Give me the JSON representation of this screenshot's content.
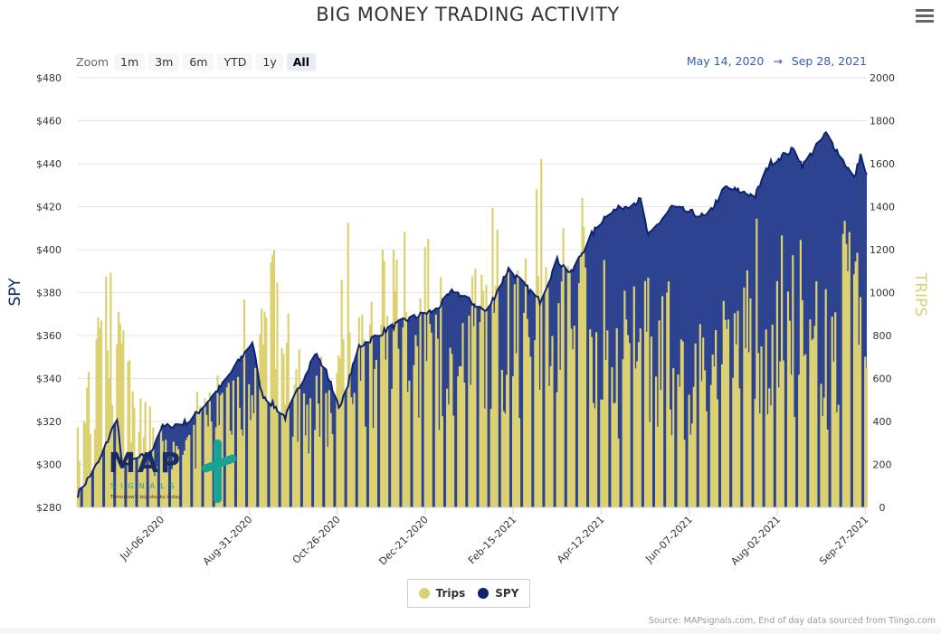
{
  "header": {
    "title": "BIG MONEY TRADING ACTIVITY"
  },
  "zoom": {
    "label": "Zoom",
    "buttons": [
      "1m",
      "3m",
      "6m",
      "YTD",
      "1y",
      "All"
    ],
    "active": "All"
  },
  "range": {
    "from": "May 14, 2020",
    "arrow": "→",
    "to": "Sep 28, 2021"
  },
  "legend": {
    "trips": "Trips",
    "spy": "SPY"
  },
  "source": "Source: MAPsignals.com, End of day data sourced from Tiingo.com",
  "logo": {
    "text": "MAP",
    "sub": "SIGNALS",
    "tagline": "Tomorrow's big stocks today"
  },
  "colors": {
    "spy": "#0d2270",
    "spy_fill": "#2e438f",
    "trips": "#dcd170",
    "accent": "#335cad",
    "logo_teal": "#1aa296"
  },
  "chart_data": {
    "type": "bar+area",
    "title": "BIG MONEY TRADING ACTIVITY",
    "x_range": [
      "2020-05-14",
      "2021-09-28"
    ],
    "x_ticks": [
      "Jul-06-2020",
      "Aug-31-2020",
      "Oct-26-2020",
      "Dec-21-2020",
      "Feb-15-2021",
      "Apr-12-2021",
      "Jun-07-2021",
      "Aug-02-2021",
      "Sep-27-2021"
    ],
    "y_left": {
      "label": "SPY",
      "min": 280,
      "max": 480,
      "ticks": [
        "$280",
        "$300",
        "$320",
        "$340",
        "$360",
        "$380",
        "$400",
        "$420",
        "$440",
        "$460",
        "$480"
      ]
    },
    "y_right": {
      "label": "TRIPS",
      "min": 0,
      "max": 2000,
      "ticks": [
        "0",
        "200",
        "400",
        "600",
        "800",
        "1000",
        "1200",
        "1400",
        "1600",
        "1800",
        "2000"
      ]
    },
    "grid": true,
    "legend_position": "bottom-center",
    "series": [
      {
        "name": "SPY",
        "type": "area",
        "axis": "left",
        "points": [
          [
            "2020-05-14",
            286
          ],
          [
            "2020-05-28",
            302
          ],
          [
            "2020-06-08",
            322
          ],
          [
            "2020-06-11",
            300
          ],
          [
            "2020-06-29",
            305
          ],
          [
            "2020-07-06",
            317
          ],
          [
            "2020-07-24",
            320
          ],
          [
            "2020-08-03",
            328
          ],
          [
            "2020-08-14",
            337
          ],
          [
            "2020-09-02",
            357
          ],
          [
            "2020-09-08",
            333
          ],
          [
            "2020-09-23",
            322
          ],
          [
            "2020-10-12",
            352
          ],
          [
            "2020-10-19",
            343
          ],
          [
            "2020-10-28",
            326
          ],
          [
            "2020-11-09",
            355
          ],
          [
            "2020-11-27",
            363
          ],
          [
            "2020-12-08",
            367
          ],
          [
            "2020-12-28",
            372
          ],
          [
            "2021-01-08",
            381
          ],
          [
            "2021-01-29",
            371
          ],
          [
            "2021-02-12",
            391
          ],
          [
            "2021-03-04",
            376
          ],
          [
            "2021-03-15",
            395
          ],
          [
            "2021-03-24",
            389
          ],
          [
            "2021-04-06",
            407
          ],
          [
            "2021-04-16",
            417
          ],
          [
            "2021-05-07",
            423
          ],
          [
            "2021-05-12",
            406
          ],
          [
            "2021-05-27",
            420
          ],
          [
            "2021-06-18",
            415
          ],
          [
            "2021-06-30",
            429
          ],
          [
            "2021-07-19",
            425
          ],
          [
            "2021-07-28",
            440
          ],
          [
            "2021-08-13",
            447
          ],
          [
            "2021-08-18",
            439
          ],
          [
            "2021-08-31",
            452
          ],
          [
            "2021-09-02",
            454
          ],
          [
            "2021-09-10",
            445
          ],
          [
            "2021-09-20",
            433
          ],
          [
            "2021-09-24",
            444
          ],
          [
            "2021-09-28",
            434
          ]
        ]
      },
      {
        "name": "Trips",
        "type": "bar",
        "axis": "right",
        "sample_points": [
          [
            "2020-05-14",
            500
          ],
          [
            "2020-06-01",
            1030
          ],
          [
            "2020-06-07",
            1250
          ],
          [
            "2020-06-24",
            450
          ],
          [
            "2020-07-20",
            320
          ],
          [
            "2020-08-10",
            750
          ],
          [
            "2020-08-25",
            830
          ],
          [
            "2020-09-14",
            1290
          ],
          [
            "2020-10-05",
            700
          ],
          [
            "2020-10-19",
            650
          ],
          [
            "2020-11-02",
            1410
          ],
          [
            "2020-11-16",
            950
          ],
          [
            "2020-12-07",
            1390
          ],
          [
            "2020-12-14",
            1200
          ],
          [
            "2021-01-11",
            900
          ],
          [
            "2021-01-25",
            1350
          ],
          [
            "2021-02-16",
            1000
          ],
          [
            "2021-03-02",
            1490
          ],
          [
            "2021-03-16",
            1450
          ],
          [
            "2021-04-06",
            1400
          ],
          [
            "2021-04-19",
            820
          ],
          [
            "2021-05-10",
            1100
          ],
          [
            "2021-06-01",
            850
          ],
          [
            "2021-06-21",
            700
          ],
          [
            "2021-07-12",
            1300
          ],
          [
            "2021-07-26",
            1170
          ],
          [
            "2021-08-16",
            1100
          ],
          [
            "2021-09-06",
            900
          ],
          [
            "2021-09-13",
            1490
          ],
          [
            "2021-09-22",
            1190
          ],
          [
            "2021-09-28",
            1000
          ]
        ]
      }
    ]
  }
}
